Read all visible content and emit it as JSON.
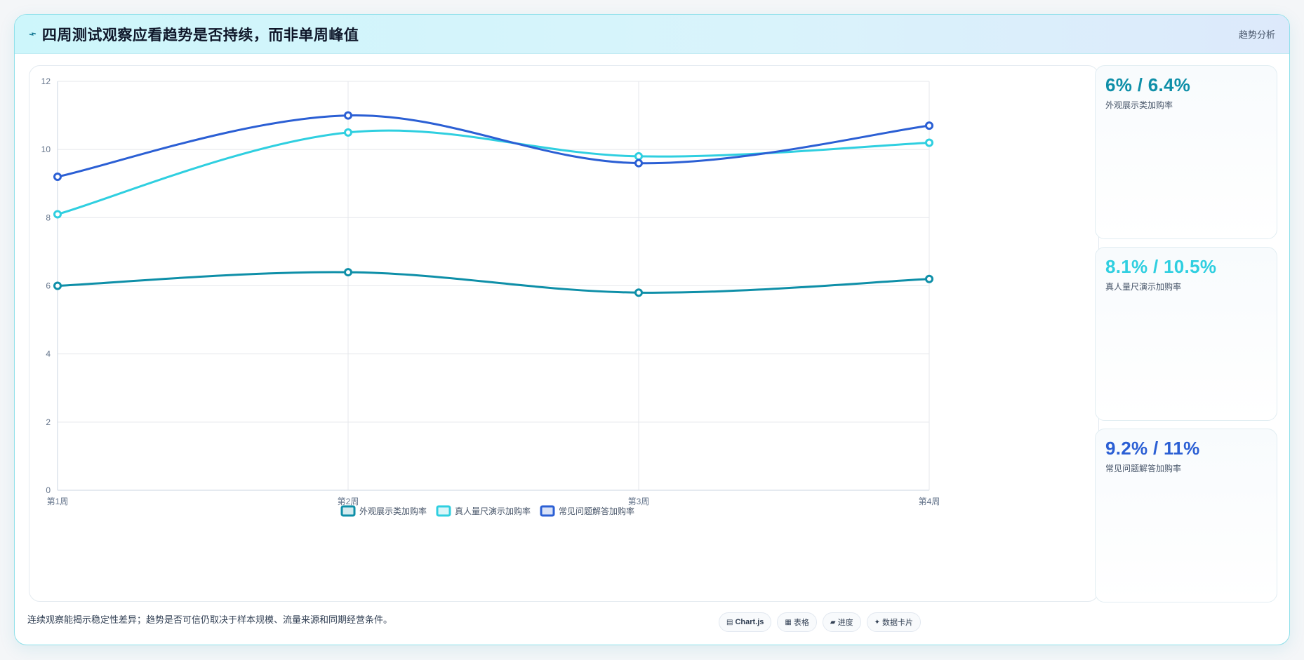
{
  "header": {
    "icon": "trend-icon",
    "title": "四周测试观察应看趋势是否持续，而非单周峰值",
    "tag": "趋势分析"
  },
  "chart_data": {
    "type": "line",
    "categories": [
      "第1周",
      "第2周",
      "第3周",
      "第4周"
    ],
    "ylim": [
      0,
      12
    ],
    "yticks": [
      0,
      2,
      4,
      6,
      8,
      10,
      12
    ],
    "grid": true,
    "smooth": true,
    "legend_position": "bottom",
    "series": [
      {
        "name": "外观展示类加购率",
        "values": [
          6.0,
          6.4,
          5.8,
          6.2
        ],
        "color": "#0e8fa8"
      },
      {
        "name": "真人量尺演示加购率",
        "values": [
          8.1,
          10.5,
          9.8,
          10.2
        ],
        "color": "#2fcfe0"
      },
      {
        "name": "常见问题解答加购率",
        "values": [
          9.2,
          11.0,
          9.6,
          10.7
        ],
        "color": "#2b5fd4"
      }
    ]
  },
  "stats": [
    {
      "value": "6% / 6.4%",
      "label": "外观展示类加购率",
      "color": "#0e8fa8"
    },
    {
      "value": "8.1% / 10.5%",
      "label": "真人量尺演示加购率",
      "color": "#2fcfe0"
    },
    {
      "value": "9.2% / 11%",
      "label": "常见问题解答加购率",
      "color": "#2b5fd4"
    }
  ],
  "footnote": "连续观察能揭示稳定性差异；趋势是否可信仍取决于样本规模、流量来源和同期经营条件。",
  "tech_tags": [
    {
      "icon": "chart-icon",
      "glyph": "▤",
      "label": "Chart.js"
    },
    {
      "icon": "table-icon",
      "glyph": "▦",
      "label": "表格"
    },
    {
      "icon": "progress-icon",
      "glyph": "▰",
      "label": "进度"
    },
    {
      "icon": "card-icon",
      "glyph": "✦",
      "label": "数据卡片"
    }
  ]
}
